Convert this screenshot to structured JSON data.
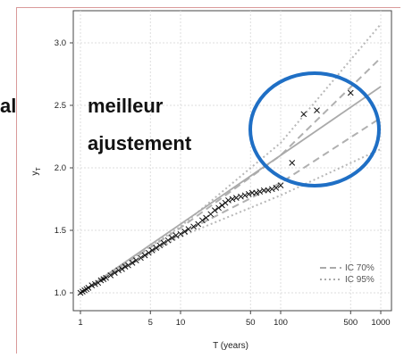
{
  "chart_data": {
    "type": "line",
    "xscale": "log",
    "xlim": [
      1,
      1000
    ],
    "ylim": [
      1.0,
      3.0
    ],
    "xticks": [
      1,
      5,
      10,
      50,
      100,
      500,
      1000
    ],
    "xtick_labels": [
      "1",
      "5",
      "10",
      "50",
      "100",
      "500",
      "1000"
    ],
    "yticks": [
      1.0,
      1.5,
      2.0,
      2.5,
      3.0
    ],
    "ytick_labels": [
      "1.0",
      "1.5",
      "2.0",
      "2.5",
      "3.0"
    ],
    "xlabel": "T (years)",
    "ylabel": "y",
    "ylabel_sub": "T",
    "grid": true,
    "legend": {
      "position": "bottom-right",
      "entries": [
        {
          "label": "IC 70%",
          "style": "dashed"
        },
        {
          "label": "IC 95%",
          "style": "dotted"
        }
      ]
    },
    "fit_line": {
      "x": [
        1,
        1000
      ],
      "y": [
        1.0,
        2.65
      ]
    },
    "ic70_upper": {
      "x": [
        1,
        10,
        100,
        1000
      ],
      "y": [
        1.0,
        1.52,
        2.1,
        2.88
      ]
    },
    "ic70_lower": {
      "x": [
        1,
        10,
        100,
        1000
      ],
      "y": [
        1.0,
        1.47,
        1.88,
        2.4
      ]
    },
    "ic95_upper": {
      "x": [
        1,
        10,
        100,
        1000
      ],
      "y": [
        1.0,
        1.53,
        2.2,
        3.15
      ]
    },
    "ic95_lower": {
      "x": [
        1,
        10,
        100,
        1000
      ],
      "y": [
        1.0,
        1.45,
        1.78,
        2.15
      ]
    },
    "points": {
      "x": [
        1.0,
        1.05,
        1.1,
        1.15,
        1.2,
        1.3,
        1.4,
        1.5,
        1.6,
        1.7,
        1.8,
        2.0,
        2.2,
        2.4,
        2.6,
        2.8,
        3.0,
        3.3,
        3.6,
        4.0,
        4.4,
        4.8,
        5.2,
        5.7,
        6.2,
        6.8,
        7.5,
        8.2,
        9.0,
        10,
        11,
        12,
        13.5,
        15,
        16.5,
        18,
        20,
        22,
        24,
        26,
        28,
        30,
        33,
        36,
        40,
        44,
        48,
        52,
        57,
        62,
        68,
        75,
        82,
        90,
        100,
        130,
        170,
        230,
        500
      ],
      "y": [
        1.0,
        1.01,
        1.02,
        1.03,
        1.04,
        1.06,
        1.07,
        1.08,
        1.1,
        1.11,
        1.12,
        1.14,
        1.16,
        1.18,
        1.19,
        1.21,
        1.22,
        1.24,
        1.26,
        1.28,
        1.3,
        1.32,
        1.34,
        1.36,
        1.38,
        1.4,
        1.42,
        1.44,
        1.46,
        1.47,
        1.49,
        1.51,
        1.53,
        1.55,
        1.58,
        1.6,
        1.63,
        1.66,
        1.68,
        1.7,
        1.72,
        1.74,
        1.75,
        1.76,
        1.77,
        1.78,
        1.79,
        1.8,
        1.8,
        1.81,
        1.82,
        1.82,
        1.83,
        1.84,
        1.86,
        2.04,
        2.43,
        2.46,
        2.6
      ]
    }
  },
  "annotation": {
    "line1_left": "al",
    "line1_right": "meilleur",
    "line2": "ajustement"
  },
  "highlight_color": "#1f6fc5",
  "frame_color": "#d99a9a"
}
